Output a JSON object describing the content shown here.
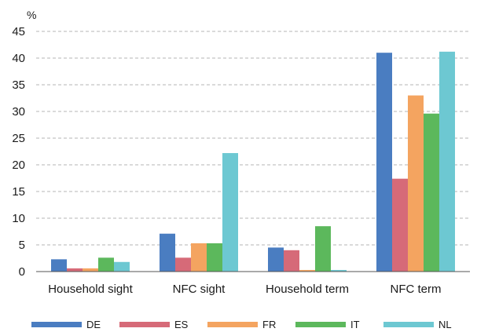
{
  "chart_data": {
    "type": "bar",
    "unit_label": "%",
    "ylim": [
      0,
      45
    ],
    "yticks": [
      0,
      5,
      10,
      15,
      20,
      25,
      30,
      35,
      40,
      45
    ],
    "grid": true,
    "legend_position": "bottom",
    "categories": [
      "Household sight",
      "NFC sight",
      "Household term",
      "NFC term"
    ],
    "series": [
      {
        "name": "DE",
        "color": "#4a7dc1",
        "values": [
          2.3,
          7.1,
          4.5,
          41.0
        ]
      },
      {
        "name": "ES",
        "color": "#d66a78",
        "values": [
          0.6,
          2.6,
          4.0,
          17.4
        ]
      },
      {
        "name": "FR",
        "color": "#f4a460",
        "values": [
          0.6,
          5.3,
          0.3,
          33.0
        ]
      },
      {
        "name": "IT",
        "color": "#5cb85c",
        "values": [
          2.6,
          5.3,
          8.5,
          29.6
        ]
      },
      {
        "name": "NL",
        "color": "#6dc8d2",
        "values": [
          1.8,
          22.2,
          0.3,
          41.2
        ]
      }
    ]
  }
}
